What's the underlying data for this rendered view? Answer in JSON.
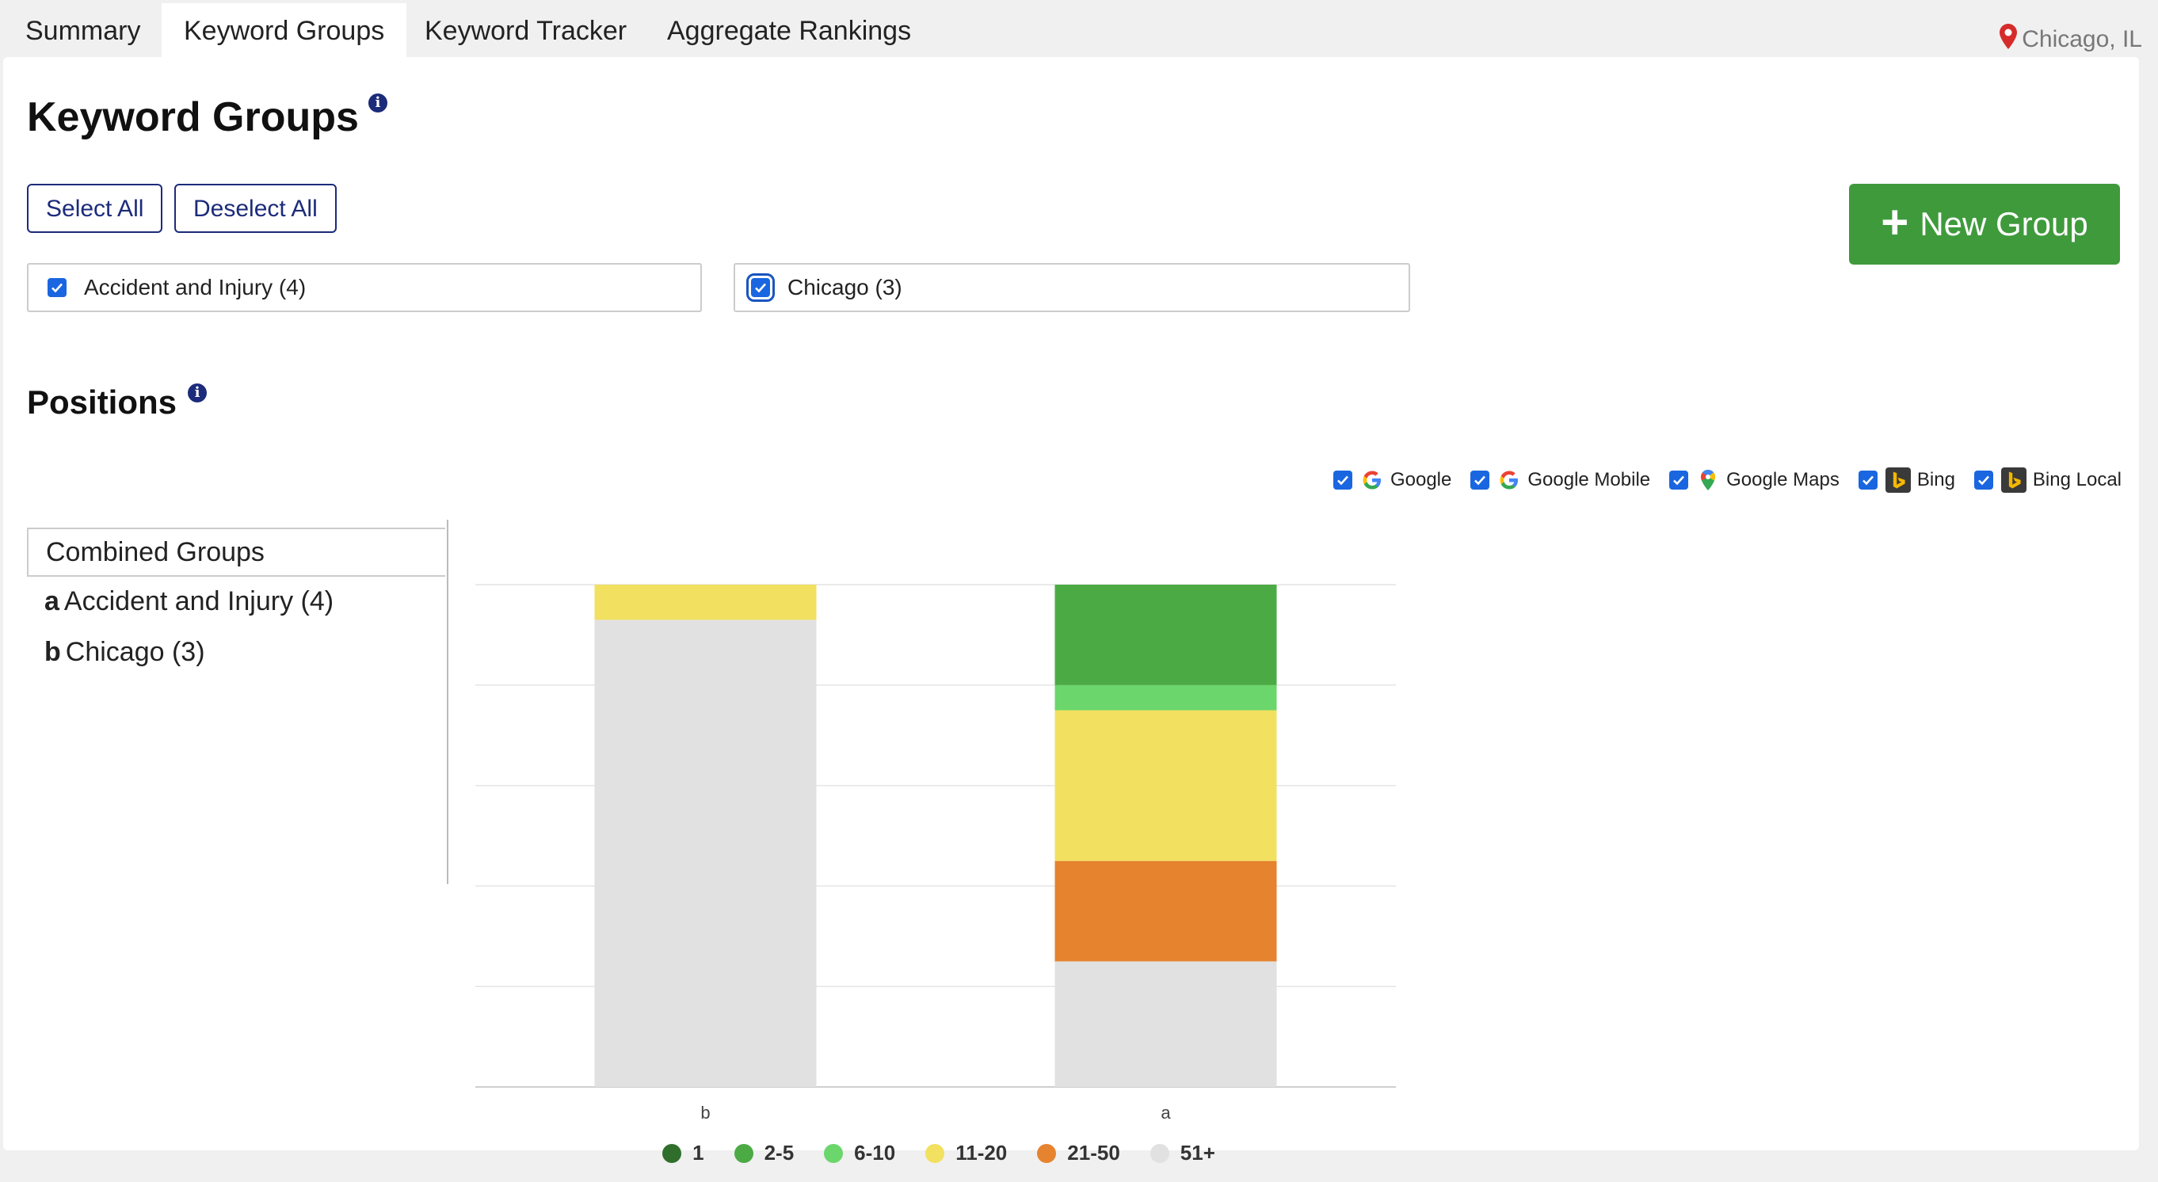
{
  "tabs": [
    {
      "label": "Summary"
    },
    {
      "label": "Keyword Groups"
    },
    {
      "label": "Keyword Tracker"
    },
    {
      "label": "Aggregate Rankings"
    }
  ],
  "location": "Chicago, IL",
  "page_title": "Keyword Groups",
  "buttons": {
    "select_all": "Select All",
    "deselect_all": "Deselect All",
    "new_group": "New Group"
  },
  "groups": [
    {
      "label": "Accident and Injury (4)",
      "checked": true
    },
    {
      "label": "Chicago (3)",
      "checked": true
    }
  ],
  "positions_title": "Positions",
  "engines": [
    {
      "label": "Google",
      "icon": "google-icon",
      "checked": true
    },
    {
      "label": "Google Mobile",
      "icon": "google-icon",
      "checked": true
    },
    {
      "label": "Google Maps",
      "icon": "google-maps-icon",
      "checked": true
    },
    {
      "label": "Bing",
      "icon": "bing-icon",
      "checked": true
    },
    {
      "label": "Bing Local",
      "icon": "bing-icon",
      "checked": true
    }
  ],
  "group_list": {
    "header": "Combined Groups",
    "items": [
      {
        "key": "a",
        "label": "Accident and Injury (4)"
      },
      {
        "key": "b",
        "label": "Chicago (3)"
      }
    ]
  },
  "colors": {
    "accent": "#1c2b7a",
    "new_button": "#3f9a3c",
    "checkbox": "#1a66e0",
    "location_pin": "#d62b2b"
  },
  "chart_data": {
    "type": "bar",
    "stacked": true,
    "percent": true,
    "categories": [
      "b",
      "a"
    ],
    "grid": true,
    "legend_position": "bottom",
    "series": [
      {
        "name": "1",
        "color": "#2f6f2b",
        "values": [
          0,
          0
        ]
      },
      {
        "name": "2-5",
        "color": "#4caa45",
        "values": [
          0,
          20
        ]
      },
      {
        "name": "6-10",
        "color": "#6bd66b",
        "values": [
          0,
          5
        ]
      },
      {
        "name": "11-20",
        "color": "#f2e060",
        "values": [
          7,
          30
        ]
      },
      {
        "name": "21-50",
        "color": "#e5832f",
        "values": [
          0,
          20
        ]
      },
      {
        "name": "51+",
        "color": "#e1e1e1",
        "values": [
          93,
          25
        ]
      }
    ],
    "ylim": [
      0,
      100
    ]
  }
}
